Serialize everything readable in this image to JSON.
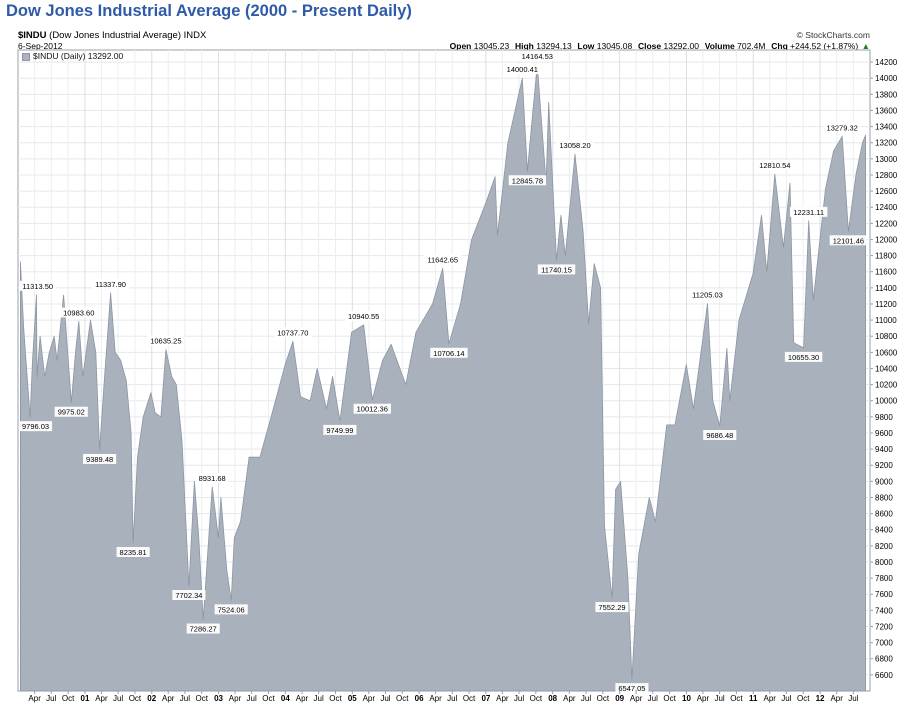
{
  "title": "Dow Jones Industrial Average (2000 - Present Daily)",
  "header": {
    "symbol": "$INDU",
    "description": "(Dow Jones Industrial Average)",
    "exchange": "INDX",
    "date": "6-Sep-2012",
    "brand": "© StockCharts.com"
  },
  "quote": {
    "open_label": "Open",
    "open": "13045.23",
    "high_label": "High",
    "high": "13294.13",
    "low_label": "Low",
    "low": "13045.08",
    "close_label": "Close",
    "close": "13292.00",
    "volume_label": "Volume",
    "volume": "702.4M",
    "chg_label": "Chg",
    "chg": "+244.52 (+1.87%)",
    "chg_arrow": "▲"
  },
  "legend": {
    "label": "$INDU (Daily) 13292.00"
  },
  "colors": {
    "area_fill": "#a9b1bc",
    "area_edge": "#8c96a3",
    "frame": "#9aa0a8",
    "title": "#2e5aa8"
  },
  "chart_data": {
    "type": "area",
    "title": "Dow Jones Industrial Average (2000 - Present Daily)",
    "series": [
      {
        "name": "$INDU (Daily)",
        "points": [
          [
            "2000-01-14",
            11723
          ],
          [
            "2000-02-01",
            10900
          ],
          [
            "2000-03-07",
            9796.03
          ],
          [
            "2000-03-20",
            10500
          ],
          [
            "2000-04-11",
            11313.5
          ],
          [
            "2000-04-14",
            10300
          ],
          [
            "2000-05-01",
            10800
          ],
          [
            "2000-05-26",
            10300
          ],
          [
            "2000-06-20",
            10600
          ],
          [
            "2000-07-17",
            10800
          ],
          [
            "2000-08-01",
            10500
          ],
          [
            "2000-09-06",
            11310
          ],
          [
            "2000-10-18",
            9975.02
          ],
          [
            "2000-11-10",
            10600
          ],
          [
            "2000-11-28",
            10983.6
          ],
          [
            "2000-12-20",
            10300
          ],
          [
            "2001-01-31",
            11000
          ],
          [
            "2001-03-01",
            10600
          ],
          [
            "2001-03-22",
            9389.48
          ],
          [
            "2001-04-15",
            10200
          ],
          [
            "2001-05-21",
            11337.9
          ],
          [
            "2001-06-15",
            10600
          ],
          [
            "2001-07-15",
            10500
          ],
          [
            "2001-08-15",
            10250
          ],
          [
            "2001-09-10",
            9600
          ],
          [
            "2001-09-21",
            8235.81
          ],
          [
            "2001-10-15",
            9300
          ],
          [
            "2001-11-15",
            9800
          ],
          [
            "2001-12-27",
            10100
          ],
          [
            "2002-01-20",
            9850
          ],
          [
            "2002-02-20",
            9800
          ],
          [
            "2002-03-19",
            10635.25
          ],
          [
            "2002-04-20",
            10300
          ],
          [
            "2002-05-15",
            10200
          ],
          [
            "2002-06-15",
            9500
          ],
          [
            "2002-07-23",
            7702.34
          ],
          [
            "2002-08-22",
            9000
          ],
          [
            "2002-09-15",
            8300
          ],
          [
            "2002-10-09",
            7286.27
          ],
          [
            "2002-11-27",
            8931.68
          ],
          [
            "2002-12-31",
            8300
          ],
          [
            "2003-01-14",
            8800
          ],
          [
            "2003-02-15",
            7900
          ],
          [
            "2003-03-11",
            7524.06
          ],
          [
            "2003-03-28",
            8300
          ],
          [
            "2003-05-01",
            8500
          ],
          [
            "2003-06-17",
            9300
          ],
          [
            "2003-08-15",
            9300
          ],
          [
            "2003-10-15",
            9800
          ],
          [
            "2003-12-31",
            10450
          ],
          [
            "2004-02-11",
            10737.7
          ],
          [
            "2004-03-24",
            10050
          ],
          [
            "2004-05-15",
            10000
          ],
          [
            "2004-06-23",
            10400
          ],
          [
            "2004-08-13",
            9900
          ],
          [
            "2004-09-15",
            10300
          ],
          [
            "2004-10-25",
            9749.99
          ],
          [
            "2004-12-28",
            10850
          ],
          [
            "2005-03-04",
            10940.55
          ],
          [
            "2005-04-20",
            10012.36
          ],
          [
            "2005-06-15",
            10500
          ],
          [
            "2005-08-01",
            10700
          ],
          [
            "2005-10-20",
            10200
          ],
          [
            "2005-12-15",
            10850
          ],
          [
            "2006-03-15",
            11200
          ],
          [
            "2006-05-10",
            11642.65
          ],
          [
            "2006-06-13",
            10706.14
          ],
          [
            "2006-08-15",
            11200
          ],
          [
            "2006-10-15",
            12000
          ],
          [
            "2006-12-31",
            12450
          ],
          [
            "2007-02-20",
            12780
          ],
          [
            "2007-03-05",
            12050
          ],
          [
            "2007-05-01",
            13200
          ],
          [
            "2007-07-19",
            14000.41
          ],
          [
            "2007-08-16",
            12845.78
          ],
          [
            "2007-09-15",
            13600
          ],
          [
            "2007-10-09",
            14164.53
          ],
          [
            "2007-11-26",
            12700
          ],
          [
            "2007-12-10",
            13700
          ],
          [
            "2008-01-22",
            11740.15
          ],
          [
            "2008-02-15",
            12300
          ],
          [
            "2008-03-10",
            11800
          ],
          [
            "2008-05-02",
            13058.2
          ],
          [
            "2008-06-15",
            12100
          ],
          [
            "2008-07-15",
            10960
          ],
          [
            "2008-08-15",
            11700
          ],
          [
            "2008-09-19",
            11400
          ],
          [
            "2008-10-10",
            8450
          ],
          [
            "2008-11-20",
            7552.29
          ],
          [
            "2008-12-10",
            8900
          ],
          [
            "2009-01-06",
            9000
          ],
          [
            "2009-02-15",
            7800
          ],
          [
            "2009-03-09",
            6547.05
          ],
          [
            "2009-04-15",
            8100
          ],
          [
            "2009-06-12",
            8800
          ],
          [
            "2009-07-15",
            8500
          ],
          [
            "2009-09-15",
            9700
          ],
          [
            "2009-10-30",
            9700
          ],
          [
            "2009-12-31",
            10450
          ],
          [
            "2010-02-08",
            9900
          ],
          [
            "2010-04-26",
            11205.03
          ],
          [
            "2010-05-25",
            10000
          ],
          [
            "2010-07-02",
            9686.48
          ],
          [
            "2010-08-10",
            10650
          ],
          [
            "2010-08-26",
            10000
          ],
          [
            "2010-10-15",
            11000
          ],
          [
            "2010-12-31",
            11580
          ],
          [
            "2011-02-15",
            12300
          ],
          [
            "2011-03-16",
            11600
          ],
          [
            "2011-04-29",
            12810.54
          ],
          [
            "2011-06-15",
            11900
          ],
          [
            "2011-07-21",
            12700
          ],
          [
            "2011-08-10",
            10720
          ],
          [
            "2011-10-03",
            10655.3
          ],
          [
            "2011-10-31",
            12231.11
          ],
          [
            "2011-11-25",
            11250
          ],
          [
            "2012-01-31",
            12630
          ],
          [
            "2012-03-15",
            13100
          ],
          [
            "2012-05-01",
            13279.32
          ],
          [
            "2012-06-04",
            12101.46
          ],
          [
            "2012-07-15",
            12800
          ],
          [
            "2012-08-20",
            13200
          ],
          [
            "2012-09-06",
            13292.0
          ]
        ]
      }
    ],
    "annotations": [
      {
        "date": "2000-03-07",
        "value": 9796.03,
        "label": "9796.03",
        "pos": "below"
      },
      {
        "date": "2000-04-11",
        "value": 11313.5,
        "label": "11313.50",
        "pos": "above"
      },
      {
        "date": "2000-10-18",
        "value": 9975.02,
        "label": "9975.02",
        "pos": "below"
      },
      {
        "date": "2000-11-28",
        "value": 10983.6,
        "label": "10983.60",
        "pos": "above"
      },
      {
        "date": "2001-03-22",
        "value": 9389.48,
        "label": "9389.48",
        "pos": "below"
      },
      {
        "date": "2001-05-21",
        "value": 11337.9,
        "label": "11337.90",
        "pos": "above"
      },
      {
        "date": "2001-09-21",
        "value": 8235.81,
        "label": "8235.81",
        "pos": "below"
      },
      {
        "date": "2002-03-19",
        "value": 10635.25,
        "label": "10635.25",
        "pos": "above"
      },
      {
        "date": "2002-07-23",
        "value": 7702.34,
        "label": "7702.34",
        "pos": "below"
      },
      {
        "date": "2002-10-09",
        "value": 7286.27,
        "label": "7286.27",
        "pos": "below"
      },
      {
        "date": "2002-11-27",
        "value": 8931.68,
        "label": "8931.68",
        "pos": "above"
      },
      {
        "date": "2003-03-11",
        "value": 7524.06,
        "label": "7524.06",
        "pos": "below"
      },
      {
        "date": "2004-02-11",
        "value": 10737.7,
        "label": "10737.70",
        "pos": "above"
      },
      {
        "date": "2004-10-25",
        "value": 9749.99,
        "label": "9749.99",
        "pos": "below"
      },
      {
        "date": "2005-03-04",
        "value": 10940.55,
        "label": "10940.55",
        "pos": "above"
      },
      {
        "date": "2005-04-20",
        "value": 10012.36,
        "label": "10012.36",
        "pos": "below"
      },
      {
        "date": "2006-05-10",
        "value": 11642.65,
        "label": "11642.65",
        "pos": "above"
      },
      {
        "date": "2006-06-13",
        "value": 10706.14,
        "label": "10706.14",
        "pos": "below"
      },
      {
        "date": "2007-07-19",
        "value": 14000.41,
        "label": "14000.41",
        "pos": "above"
      },
      {
        "date": "2007-08-16",
        "value": 12845.78,
        "label": "12845.78",
        "pos": "below"
      },
      {
        "date": "2007-10-09",
        "value": 14164.53,
        "label": "14164.53",
        "pos": "above"
      },
      {
        "date": "2008-01-22",
        "value": 11740.15,
        "label": "11740.15",
        "pos": "below"
      },
      {
        "date": "2008-05-02",
        "value": 13058.2,
        "label": "13058.20",
        "pos": "above"
      },
      {
        "date": "2008-11-20",
        "value": 7552.29,
        "label": "7552.29",
        "pos": "below"
      },
      {
        "date": "2009-03-09",
        "value": 6547.05,
        "label": "6547.05",
        "pos": "below"
      },
      {
        "date": "2010-04-26",
        "value": 11205.03,
        "label": "11205.03",
        "pos": "above"
      },
      {
        "date": "2010-07-02",
        "value": 9686.48,
        "label": "9686.48",
        "pos": "below"
      },
      {
        "date": "2011-04-29",
        "value": 12810.54,
        "label": "12810.54",
        "pos": "above"
      },
      {
        "date": "2011-10-03",
        "value": 10655.3,
        "label": "10655.30",
        "pos": "below"
      },
      {
        "date": "2011-10-31",
        "value": 12231.11,
        "label": "12231.11",
        "pos": "above"
      },
      {
        "date": "2012-05-01",
        "value": 13279.32,
        "label": "13279.32",
        "pos": "above"
      },
      {
        "date": "2012-06-04",
        "value": 12101.46,
        "label": "12101.46",
        "pos": "below"
      }
    ],
    "xaxis": {
      "range": [
        "2000-01-01",
        "2012-09-30"
      ],
      "ticks": [
        [
          "2000-04-01",
          "Apr"
        ],
        [
          "2000-07-01",
          "Jul"
        ],
        [
          "2000-10-01",
          "Oct"
        ],
        [
          "2001-01-01",
          "01"
        ],
        [
          "2001-04-01",
          "Apr"
        ],
        [
          "2001-07-01",
          "Jul"
        ],
        [
          "2001-10-01",
          "Oct"
        ],
        [
          "2002-01-01",
          "02"
        ],
        [
          "2002-04-01",
          "Apr"
        ],
        [
          "2002-07-01",
          "Jul"
        ],
        [
          "2002-10-01",
          "Oct"
        ],
        [
          "2003-01-01",
          "03"
        ],
        [
          "2003-04-01",
          "Apr"
        ],
        [
          "2003-07-01",
          "Jul"
        ],
        [
          "2003-10-01",
          "Oct"
        ],
        [
          "2004-01-01",
          "04"
        ],
        [
          "2004-04-01",
          "Apr"
        ],
        [
          "2004-07-01",
          "Jul"
        ],
        [
          "2004-10-01",
          "Oct"
        ],
        [
          "2005-01-01",
          "05"
        ],
        [
          "2005-04-01",
          "Apr"
        ],
        [
          "2005-07-01",
          "Jul"
        ],
        [
          "2005-10-01",
          "Oct"
        ],
        [
          "2006-01-01",
          "06"
        ],
        [
          "2006-04-01",
          "Apr"
        ],
        [
          "2006-07-01",
          "Jul"
        ],
        [
          "2006-10-01",
          "Oct"
        ],
        [
          "2007-01-01",
          "07"
        ],
        [
          "2007-04-01",
          "Apr"
        ],
        [
          "2007-07-01",
          "Jul"
        ],
        [
          "2007-10-01",
          "Oct"
        ],
        [
          "2008-01-01",
          "08"
        ],
        [
          "2008-04-01",
          "Apr"
        ],
        [
          "2008-07-01",
          "Jul"
        ],
        [
          "2008-10-01",
          "Oct"
        ],
        [
          "2009-01-01",
          "09"
        ],
        [
          "2009-04-01",
          "Apr"
        ],
        [
          "2009-07-01",
          "Jul"
        ],
        [
          "2009-10-01",
          "Oct"
        ],
        [
          "2010-01-01",
          "10"
        ],
        [
          "2010-04-01",
          "Apr"
        ],
        [
          "2010-07-01",
          "Jul"
        ],
        [
          "2010-10-01",
          "Oct"
        ],
        [
          "2011-01-01",
          "11"
        ],
        [
          "2011-04-01",
          "Apr"
        ],
        [
          "2011-07-01",
          "Jul"
        ],
        [
          "2011-10-01",
          "Oct"
        ],
        [
          "2012-01-01",
          "12"
        ],
        [
          "2012-04-01",
          "Apr"
        ],
        [
          "2012-07-01",
          "Jul"
        ]
      ]
    },
    "yaxis": {
      "range": [
        6400,
        14350
      ],
      "ticks": [
        6600,
        6800,
        7000,
        7200,
        7400,
        7600,
        7800,
        8000,
        8200,
        8400,
        8600,
        8800,
        9000,
        9200,
        9400,
        9600,
        9800,
        10000,
        10200,
        10400,
        10600,
        10800,
        11000,
        11200,
        11400,
        11600,
        11800,
        12000,
        12200,
        12400,
        12600,
        12800,
        13000,
        13200,
        13400,
        13600,
        13800,
        14000,
        14200
      ],
      "position": "right"
    },
    "grid": true,
    "legend_position": "top-left"
  }
}
